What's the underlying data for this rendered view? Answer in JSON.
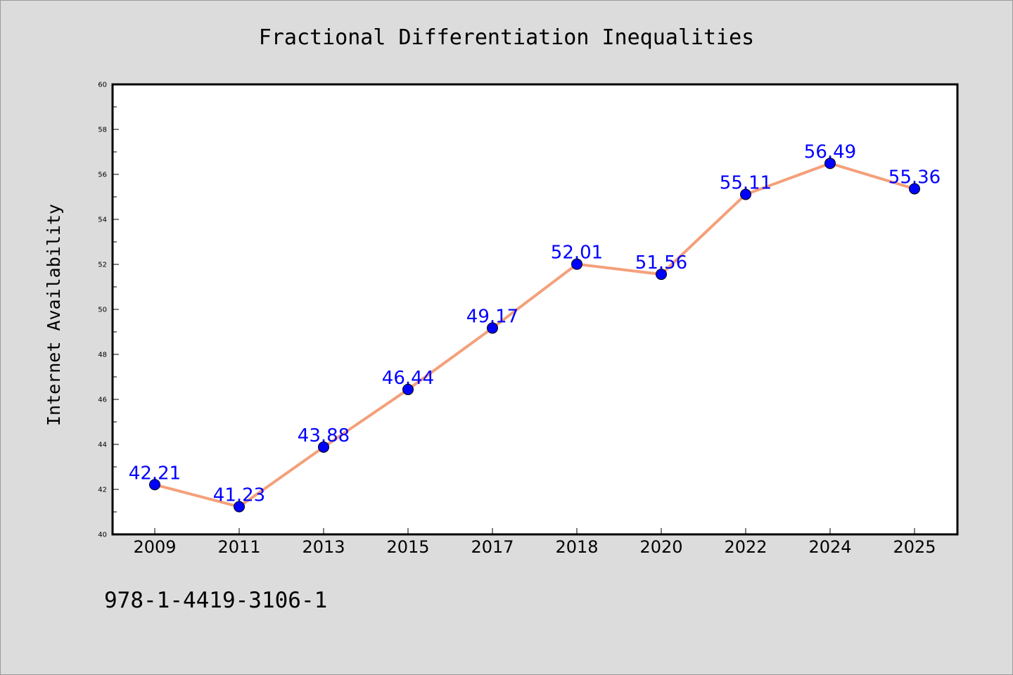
{
  "chart_data": {
    "type": "line",
    "title": "Fractional Differentiation Inequalities",
    "xlabel": "",
    "ylabel": "Internet Availability",
    "categories": [
      "2009",
      "2011",
      "2013",
      "2015",
      "2017",
      "2018",
      "2020",
      "2022",
      "2024",
      "2025"
    ],
    "series": [
      {
        "values": [
          42.21,
          41.23,
          43.88,
          46.44,
          49.17,
          52.01,
          51.56,
          55.11,
          56.49,
          55.36
        ],
        "data_labels": [
          "42.21",
          "41.23",
          "43.88",
          "46.44",
          "49.17",
          "52.01",
          "51.56",
          "55.11",
          "56.49",
          "55.36"
        ],
        "line_color": "#f4a07a",
        "marker_color": "#0000ff"
      }
    ],
    "ylim": [
      40,
      60
    ],
    "yticks": [
      "40",
      "42",
      "44",
      "46",
      "48",
      "50",
      "52",
      "54",
      "56",
      "58",
      "60"
    ],
    "grid": false,
    "legend": "none"
  },
  "footer": {
    "code": "978-1-4419-3106-1"
  }
}
